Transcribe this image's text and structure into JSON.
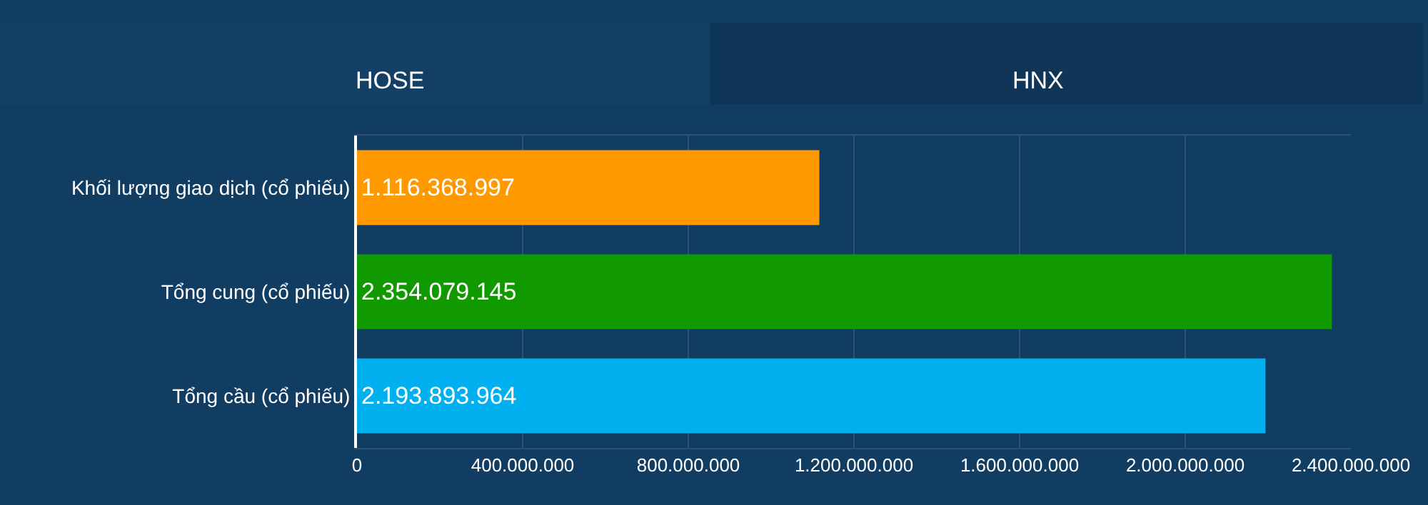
{
  "chart_data": {
    "type": "bar",
    "orientation": "horizontal",
    "categories": [
      "Khối lượng giao dịch (cổ phiếu)",
      "Tổng cung (cổ phiếu)",
      "Tổng cầu (cổ phiếu)"
    ],
    "values": [
      1116368997,
      2354079145,
      2193893964
    ],
    "colors": [
      "#ff9900",
      "#119a00",
      "#00b0ef"
    ],
    "value_labels": [
      "1.116.368.997",
      "2.354.079.145",
      "2.193.893.964"
    ],
    "xlim": [
      0,
      2400000000
    ],
    "xticks": [
      0,
      {
        "value": 400000000,
        "label": "400.000.000"
      },
      {
        "value": 800000000,
        "label": "800.000.000"
      },
      {
        "value": 1200000000,
        "label": "1.200.000.000"
      },
      {
        "value": 1600000000,
        "label": "1.600.000.000"
      },
      {
        "value": 2000000000,
        "label": "2.000.000.000"
      },
      {
        "value": 2400000000,
        "label": "2.400.000.000"
      }
    ],
    "grid": "x",
    "legend": false,
    "annotations": [
      "HOSE",
      "HNX"
    ]
  }
}
